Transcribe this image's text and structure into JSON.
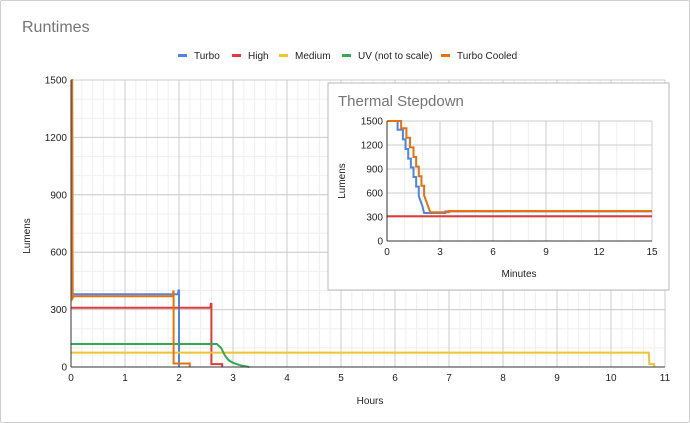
{
  "chart_data": [
    {
      "type": "line",
      "title": "Runtimes",
      "xlabel": "Hours",
      "ylabel": "Lumens",
      "xlim": [
        0,
        11
      ],
      "ylim": [
        0,
        1500
      ],
      "xticks": [
        0,
        1,
        2,
        3,
        4,
        5,
        6,
        7,
        8,
        9,
        10,
        11
      ],
      "yticks": [
        0,
        300,
        600,
        900,
        1200,
        1500
      ],
      "grid": true,
      "legend_position": "top",
      "series": [
        {
          "name": "Turbo",
          "color": "#4a86e8",
          "points": [
            [
              0,
              1500
            ],
            [
              0.02,
              1500
            ],
            [
              0.03,
              380
            ],
            [
              1.98,
              380
            ],
            [
              1.99,
              400
            ],
            [
              2.0,
              400
            ],
            [
              2.0,
              0
            ]
          ]
        },
        {
          "name": "High",
          "color": "#e03a3a",
          "points": [
            [
              0,
              310
            ],
            [
              2.58,
              310
            ],
            [
              2.59,
              330
            ],
            [
              2.6,
              330
            ],
            [
              2.6,
              15
            ],
            [
              2.8,
              15
            ],
            [
              2.8,
              0
            ]
          ]
        },
        {
          "name": "Medium",
          "color": "#f1c232",
          "points": [
            [
              0,
              75
            ],
            [
              10.7,
              75
            ],
            [
              10.71,
              15
            ],
            [
              10.8,
              15
            ],
            [
              10.8,
              0
            ]
          ]
        },
        {
          "name": "UV (not to scale)",
          "color": "#34a853",
          "points": [
            [
              0,
              120
            ],
            [
              2.7,
              120
            ],
            [
              2.78,
              100
            ],
            [
              2.85,
              60
            ],
            [
              2.92,
              35
            ],
            [
              3.0,
              22
            ],
            [
              3.1,
              12
            ],
            [
              3.2,
              5
            ],
            [
              3.3,
              0
            ]
          ]
        },
        {
          "name": "Turbo Cooled",
          "color": "#e8710a",
          "points": [
            [
              0,
              1500
            ],
            [
              0.02,
              1500
            ],
            [
              0.03,
              360
            ],
            [
              0.05,
              370
            ],
            [
              1.88,
              370
            ],
            [
              1.9,
              400
            ],
            [
              1.9,
              18
            ],
            [
              2.2,
              18
            ],
            [
              2.2,
              0
            ]
          ]
        }
      ]
    },
    {
      "type": "line",
      "title": "Thermal Stepdown",
      "xlabel": "Minutes",
      "ylabel": "Lumens",
      "xlim": [
        0,
        15
      ],
      "ylim": [
        0,
        1500
      ],
      "xticks": [
        0,
        3,
        6,
        9,
        12,
        15
      ],
      "yticks": [
        0,
        300,
        600,
        900,
        1200,
        1500
      ],
      "grid": true,
      "series": [
        {
          "name": "Turbo",
          "color": "#4a86e8",
          "points": [
            [
              0,
              1500
            ],
            [
              0.6,
              1500
            ],
            [
              0.6,
              1390
            ],
            [
              0.9,
              1390
            ],
            [
              0.9,
              1270
            ],
            [
              1.05,
              1270
            ],
            [
              1.05,
              1150
            ],
            [
              1.2,
              1150
            ],
            [
              1.2,
              1030
            ],
            [
              1.35,
              1030
            ],
            [
              1.35,
              920
            ],
            [
              1.5,
              920
            ],
            [
              1.5,
              800
            ],
            [
              1.65,
              800
            ],
            [
              1.65,
              680
            ],
            [
              1.8,
              680
            ],
            [
              1.8,
              560
            ],
            [
              2.0,
              440
            ],
            [
              2.1,
              350
            ],
            [
              3.3,
              350
            ],
            [
              3.3,
              370
            ],
            [
              15,
              370
            ]
          ]
        },
        {
          "name": "High",
          "color": "#e03a3a",
          "points": [
            [
              0,
              310
            ],
            [
              15,
              310
            ]
          ]
        },
        {
          "name": "Turbo Cooled",
          "color": "#e8710a",
          "points": [
            [
              0,
              1500
            ],
            [
              0.8,
              1500
            ],
            [
              0.8,
              1410
            ],
            [
              1.1,
              1410
            ],
            [
              1.1,
              1290
            ],
            [
              1.3,
              1290
            ],
            [
              1.3,
              1170
            ],
            [
              1.5,
              1170
            ],
            [
              1.5,
              1050
            ],
            [
              1.65,
              1050
            ],
            [
              1.65,
              930
            ],
            [
              1.8,
              930
            ],
            [
              1.8,
              810
            ],
            [
              1.95,
              810
            ],
            [
              1.95,
              690
            ],
            [
              2.1,
              690
            ],
            [
              2.1,
              570
            ],
            [
              2.3,
              450
            ],
            [
              2.45,
              360
            ],
            [
              3.5,
              360
            ],
            [
              3.5,
              375
            ],
            [
              15,
              375
            ]
          ]
        }
      ]
    }
  ]
}
